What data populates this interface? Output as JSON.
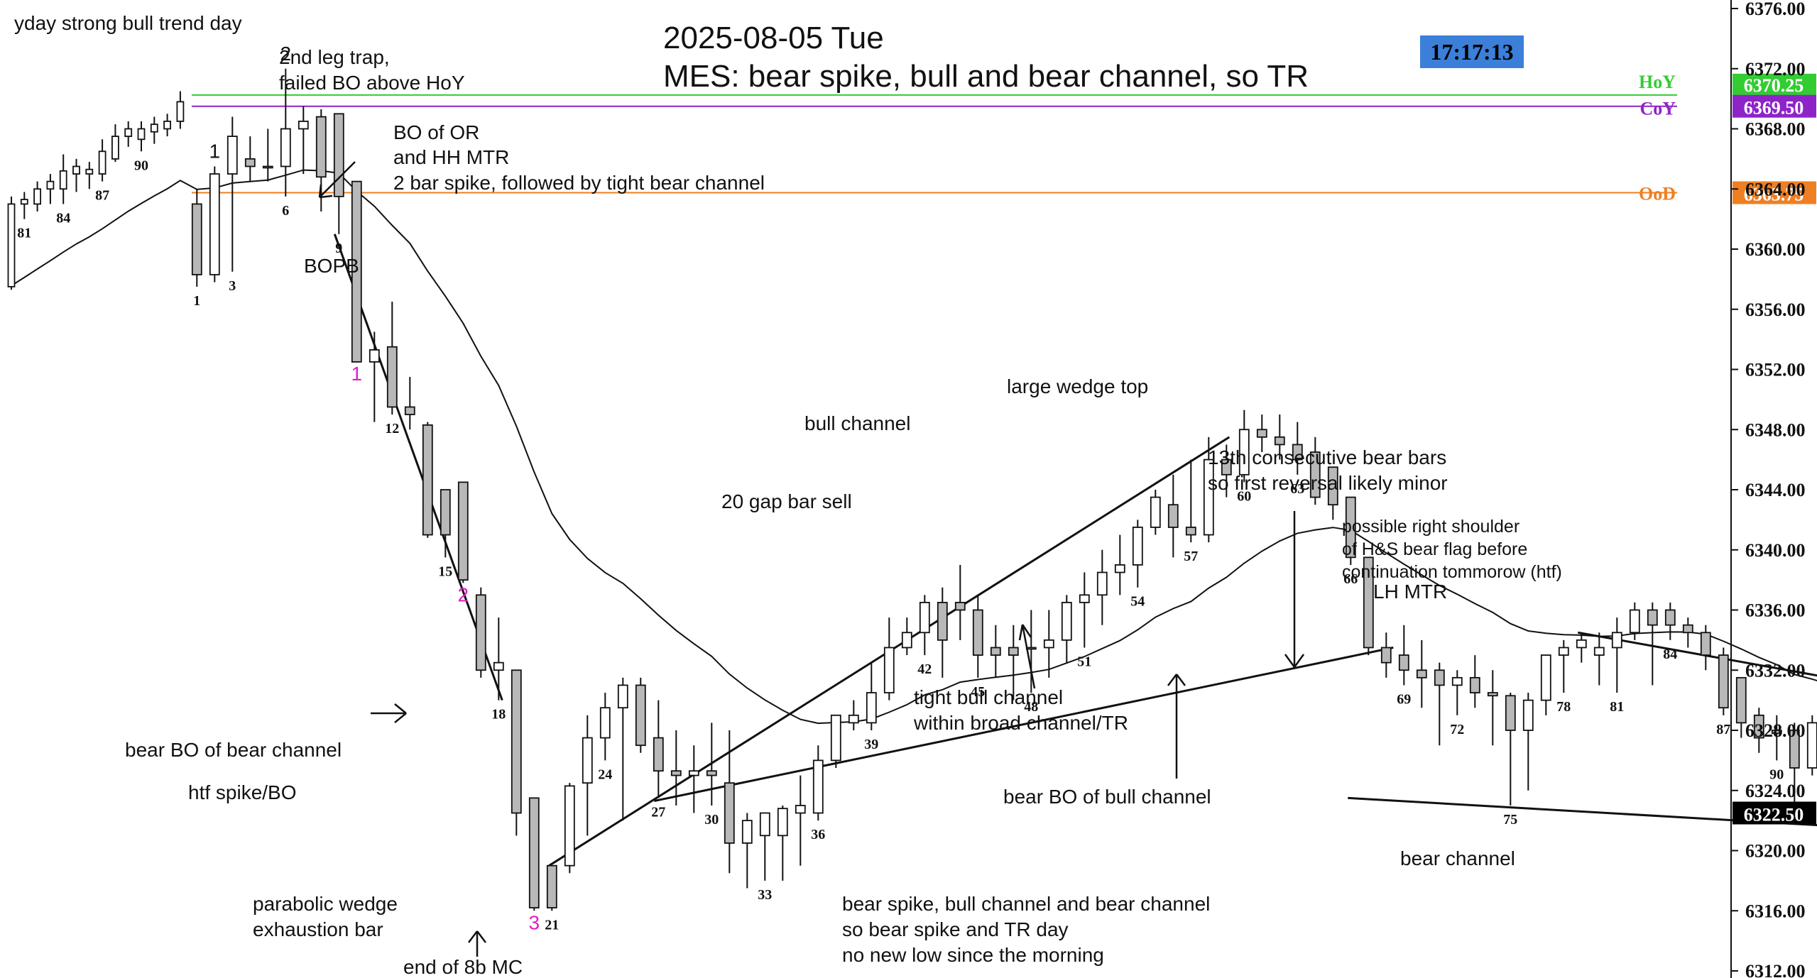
{
  "header": {
    "title_line1": "2025-08-05 Tue",
    "title_line2": "MES: bear spike, bull and bear channel, so TR",
    "clock": "17:17:13",
    "title_color": "#1a1aee",
    "clock_bg": "#3b7fd9"
  },
  "chart_data": {
    "type": "candlestick",
    "symbol": "MES",
    "date": "2025-08-05",
    "ylim": [
      6312,
      6376
    ],
    "y_ticks": [
      "6312.00",
      "6316.00",
      "6320.00",
      "6324.00",
      "6328.00",
      "6332.00",
      "6336.00",
      "6340.00",
      "6344.00",
      "6348.00",
      "6352.00",
      "6356.00",
      "6360.00",
      "6364.00",
      "6368.00",
      "6372.00",
      "6376.00"
    ],
    "prev_day_bars": [
      {
        "o": 6357.5,
        "h": 6363.5,
        "l": 6357.3,
        "c": 6363.0
      },
      {
        "o": 6363.0,
        "h": 6363.8,
        "l": 6362.0,
        "c": 6363.3
      },
      {
        "o": 6363.0,
        "h": 6364.5,
        "l": 6362.5,
        "c": 6364.0
      },
      {
        "o": 6364.0,
        "h": 6365.0,
        "l": 6363.0,
        "c": 6364.5
      },
      {
        "o": 6364.0,
        "h": 6366.3,
        "l": 6363.0,
        "c": 6365.2
      },
      {
        "o": 6365.0,
        "h": 6366.0,
        "l": 6363.8,
        "c": 6365.5
      },
      {
        "o": 6365.0,
        "h": 6365.8,
        "l": 6364.0,
        "c": 6365.3
      },
      {
        "o": 6365.0,
        "h": 6367.3,
        "l": 6364.5,
        "c": 6366.5
      },
      {
        "o": 6366.0,
        "h": 6368.3,
        "l": 6365.8,
        "c": 6367.5
      },
      {
        "o": 6367.5,
        "h": 6368.5,
        "l": 6366.8,
        "c": 6368.0
      },
      {
        "o": 6367.3,
        "h": 6368.5,
        "l": 6366.5,
        "c": 6368.0
      },
      {
        "o": 6367.8,
        "h": 6368.8,
        "l": 6367.0,
        "c": 6368.3
      },
      {
        "o": 6368.0,
        "h": 6369.0,
        "l": 6367.5,
        "c": 6368.5
      },
      {
        "o": 6368.5,
        "h": 6370.5,
        "l": 6368.0,
        "c": 6369.8
      }
    ],
    "bars": [
      {
        "o": 6363.0,
        "h": 6364.0,
        "l": 6357.5,
        "c": 6358.3
      },
      {
        "o": 6358.3,
        "h": 6365.5,
        "l": 6357.8,
        "c": 6365.0
      },
      {
        "o": 6365.0,
        "h": 6368.8,
        "l": 6358.5,
        "c": 6367.5
      },
      {
        "o": 6366.0,
        "h": 6367.5,
        "l": 6364.5,
        "c": 6365.5
      },
      {
        "o": 6365.5,
        "h": 6368.0,
        "l": 6364.5,
        "c": 6365.5
      },
      {
        "o": 6365.5,
        "h": 6372.0,
        "l": 6363.5,
        "c": 6368.0
      },
      {
        "o": 6368.0,
        "h": 6369.5,
        "l": 6365.0,
        "c": 6368.5
      },
      {
        "o": 6368.8,
        "h": 6369.3,
        "l": 6362.5,
        "c": 6364.8
      },
      {
        "o": 6369.0,
        "h": 6369.0,
        "l": 6361.0,
        "c": 6363.5
      },
      {
        "o": 6364.5,
        "h": 6364.5,
        "l": 6352.5,
        "c": 6352.5
      },
      {
        "o": 6352.5,
        "h": 6354.5,
        "l": 6348.5,
        "c": 6353.3
      },
      {
        "o": 6353.5,
        "h": 6356.5,
        "l": 6349.0,
        "c": 6349.5
      },
      {
        "o": 6349.5,
        "h": 6351.5,
        "l": 6348.0,
        "c": 6349.0
      },
      {
        "o": 6348.3,
        "h": 6348.5,
        "l": 6340.8,
        "c": 6341.0
      },
      {
        "o": 6344.0,
        "h": 6344.0,
        "l": 6339.5,
        "c": 6341.0
      },
      {
        "o": 6344.5,
        "h": 6344.5,
        "l": 6337.8,
        "c": 6338.0
      },
      {
        "o": 6337.0,
        "h": 6337.5,
        "l": 6331.5,
        "c": 6332.0
      },
      {
        "o": 6332.0,
        "h": 6335.5,
        "l": 6330.0,
        "c": 6332.5
      },
      {
        "o": 6332.0,
        "h": 6332.0,
        "l": 6321.0,
        "c": 6322.5
      },
      {
        "o": 6323.5,
        "h": 6323.5,
        "l": 6316.0,
        "c": 6316.2
      },
      {
        "o": 6319.0,
        "h": 6319.0,
        "l": 6316.0,
        "c": 6316.2
      },
      {
        "o": 6319.0,
        "h": 6324.5,
        "l": 6318.5,
        "c": 6324.3
      },
      {
        "o": 6324.5,
        "h": 6329.0,
        "l": 6321.0,
        "c": 6327.5
      },
      {
        "o": 6327.5,
        "h": 6330.5,
        "l": 6326.0,
        "c": 6329.5
      },
      {
        "o": 6329.5,
        "h": 6331.5,
        "l": 6322.0,
        "c": 6331.0
      },
      {
        "o": 6331.0,
        "h": 6331.5,
        "l": 6326.5,
        "c": 6327.0
      },
      {
        "o": 6327.5,
        "h": 6330.0,
        "l": 6323.5,
        "c": 6325.3
      },
      {
        "o": 6325.3,
        "h": 6328.0,
        "l": 6323.0,
        "c": 6325.0
      },
      {
        "o": 6325.0,
        "h": 6327.0,
        "l": 6322.5,
        "c": 6325.3
      },
      {
        "o": 6325.3,
        "h": 6328.5,
        "l": 6323.0,
        "c": 6325.0
      },
      {
        "o": 6324.5,
        "h": 6328.0,
        "l": 6318.5,
        "c": 6320.5
      },
      {
        "o": 6320.5,
        "h": 6322.5,
        "l": 6317.5,
        "c": 6322.0
      },
      {
        "o": 6321.0,
        "h": 6322.5,
        "l": 6318.0,
        "c": 6322.5
      },
      {
        "o": 6321.0,
        "h": 6323.0,
        "l": 6318.0,
        "c": 6322.8
      },
      {
        "o": 6322.5,
        "h": 6325.0,
        "l": 6319.0,
        "c": 6323.0
      },
      {
        "o": 6322.5,
        "h": 6327.0,
        "l": 6322.0,
        "c": 6326.0
      },
      {
        "o": 6326.0,
        "h": 6329.0,
        "l": 6325.5,
        "c": 6329.0
      },
      {
        "o": 6328.5,
        "h": 6330.0,
        "l": 6328.0,
        "c": 6329.0
      },
      {
        "o": 6328.5,
        "h": 6332.5,
        "l": 6328.0,
        "c": 6330.5
      },
      {
        "o": 6330.5,
        "h": 6335.5,
        "l": 6330.0,
        "c": 6333.5
      },
      {
        "o": 6333.5,
        "h": 6335.5,
        "l": 6333.0,
        "c": 6334.5
      },
      {
        "o": 6334.5,
        "h": 6337.0,
        "l": 6333.0,
        "c": 6336.5
      },
      {
        "o": 6336.5,
        "h": 6337.5,
        "l": 6331.5,
        "c": 6334.0
      },
      {
        "o": 6336.5,
        "h": 6339.0,
        "l": 6334.0,
        "c": 6336.0
      },
      {
        "o": 6336.0,
        "h": 6337.0,
        "l": 6331.5,
        "c": 6333.0
      },
      {
        "o": 6333.5,
        "h": 6335.0,
        "l": 6331.5,
        "c": 6333.0
      },
      {
        "o": 6333.5,
        "h": 6335.0,
        "l": 6330.0,
        "c": 6333.0
      },
      {
        "o": 6333.5,
        "h": 6336.0,
        "l": 6330.5,
        "c": 6333.5
      },
      {
        "o": 6333.5,
        "h": 6336.0,
        "l": 6331.5,
        "c": 6334.0
      },
      {
        "o": 6334.0,
        "h": 6337.0,
        "l": 6332.5,
        "c": 6336.5
      },
      {
        "o": 6336.5,
        "h": 6338.5,
        "l": 6333.5,
        "c": 6337.0
      },
      {
        "o": 6337.0,
        "h": 6340.0,
        "l": 6335.0,
        "c": 6338.5
      },
      {
        "o": 6338.5,
        "h": 6341.0,
        "l": 6337.0,
        "c": 6339.0
      },
      {
        "o": 6339.0,
        "h": 6342.0,
        "l": 6337.5,
        "c": 6341.5
      },
      {
        "o": 6341.5,
        "h": 6344.0,
        "l": 6341.0,
        "c": 6343.5
      },
      {
        "o": 6343.0,
        "h": 6345.0,
        "l": 6339.5,
        "c": 6341.5
      },
      {
        "o": 6341.5,
        "h": 6346.0,
        "l": 6340.5,
        "c": 6341.0
      },
      {
        "o": 6341.0,
        "h": 6347.5,
        "l": 6340.5,
        "c": 6346.0
      },
      {
        "o": 6346.0,
        "h": 6347.0,
        "l": 6343.5,
        "c": 6345.0
      },
      {
        "o": 6345.0,
        "h": 6349.3,
        "l": 6344.5,
        "c": 6348.0
      },
      {
        "o": 6348.0,
        "h": 6349.0,
        "l": 6346.5,
        "c": 6347.5
      },
      {
        "o": 6347.5,
        "h": 6349.0,
        "l": 6346.0,
        "c": 6347.0
      },
      {
        "o": 6347.0,
        "h": 6348.5,
        "l": 6345.0,
        "c": 6346.0
      },
      {
        "o": 6346.5,
        "h": 6347.5,
        "l": 6343.0,
        "c": 6343.5
      },
      {
        "o": 6345.5,
        "h": 6345.5,
        "l": 6342.0,
        "c": 6343.0
      },
      {
        "o": 6343.5,
        "h": 6343.5,
        "l": 6339.0,
        "c": 6339.5
      },
      {
        "o": 6339.5,
        "h": 6339.5,
        "l": 6333.0,
        "c": 6333.5
      },
      {
        "o": 6333.5,
        "h": 6334.5,
        "l": 6331.5,
        "c": 6332.5
      },
      {
        "o": 6333.0,
        "h": 6335.0,
        "l": 6331.0,
        "c": 6332.0
      },
      {
        "o": 6332.0,
        "h": 6334.0,
        "l": 6329.5,
        "c": 6331.5
      },
      {
        "o": 6332.0,
        "h": 6332.5,
        "l": 6327.0,
        "c": 6331.0
      },
      {
        "o": 6331.0,
        "h": 6332.0,
        "l": 6329.0,
        "c": 6331.5
      },
      {
        "o": 6331.5,
        "h": 6333.0,
        "l": 6329.5,
        "c": 6330.5
      },
      {
        "o": 6330.5,
        "h": 6332.0,
        "l": 6327.0,
        "c": 6330.3
      },
      {
        "o": 6330.3,
        "h": 6330.5,
        "l": 6323.0,
        "c": 6328.0
      },
      {
        "o": 6328.0,
        "h": 6330.5,
        "l": 6324.0,
        "c": 6330.0
      },
      {
        "o": 6330.0,
        "h": 6333.0,
        "l": 6329.0,
        "c": 6333.0
      },
      {
        "o": 6333.0,
        "h": 6334.0,
        "l": 6330.5,
        "c": 6333.5
      },
      {
        "o": 6333.5,
        "h": 6334.5,
        "l": 6332.5,
        "c": 6334.0
      },
      {
        "o": 6333.0,
        "h": 6334.5,
        "l": 6331.0,
        "c": 6333.5
      },
      {
        "o": 6333.5,
        "h": 6335.5,
        "l": 6330.5,
        "c": 6334.5
      },
      {
        "o": 6334.5,
        "h": 6336.5,
        "l": 6334.0,
        "c": 6336.0
      },
      {
        "o": 6336.0,
        "h": 6336.5,
        "l": 6331.0,
        "c": 6335.0
      },
      {
        "o": 6336.0,
        "h": 6336.5,
        "l": 6334.0,
        "c": 6335.0
      },
      {
        "o": 6335.0,
        "h": 6335.5,
        "l": 6333.5,
        "c": 6334.5
      },
      {
        "o": 6334.5,
        "h": 6335.0,
        "l": 6332.0,
        "c": 6333.0
      },
      {
        "o": 6333.0,
        "h": 6333.5,
        "l": 6329.0,
        "c": 6329.5
      },
      {
        "o": 6331.5,
        "h": 6331.5,
        "l": 6327.5,
        "c": 6328.5
      },
      {
        "o": 6329.0,
        "h": 6329.5,
        "l": 6326.5,
        "c": 6327.5
      },
      {
        "o": 6328.0,
        "h": 6329.0,
        "l": 6326.0,
        "c": 6327.8
      },
      {
        "o": 6328.0,
        "h": 6328.5,
        "l": 6323.0,
        "c": 6325.5
      },
      {
        "o": 6325.5,
        "h": 6329.0,
        "l": 6325.0,
        "c": 6328.5
      },
      {
        "o": 6328.5,
        "h": 6329.0,
        "l": 6326.0,
        "c": 6327.5
      },
      {
        "o": 6328.0,
        "h": 6329.0,
        "l": 6326.5,
        "c": 6328.5
      },
      {
        "o": 6328.5,
        "h": 6329.5,
        "l": 6327.5,
        "c": 6328.5
      },
      {
        "o": 6328.5,
        "h": 6332.5,
        "l": 6327.5,
        "c": 6331.0
      },
      {
        "o": 6331.5,
        "h": 6331.5,
        "l": 6322.5,
        "c": 6323.0
      },
      {
        "o": 6323.0,
        "h": 6325.5,
        "l": 6321.0,
        "c": 6324.0
      },
      {
        "o": 6324.5,
        "h": 6324.5,
        "l": 6322.0,
        "c": 6322.5
      },
      {
        "o": 6322.5,
        "h": 6324.0,
        "l": 6322.0,
        "c": 6323.5
      },
      {
        "o": 6323.5,
        "h": 6325.0,
        "l": 6322.0,
        "c": 6324.0
      },
      {
        "o": 6324.0,
        "h": 6325.5,
        "l": 6323.0,
        "c": 6325.0
      },
      {
        "o": 6325.0,
        "h": 6326.5,
        "l": 6324.0,
        "c": 6326.0
      },
      {
        "o": 6326.5,
        "h": 6326.5,
        "l": 6323.0,
        "c": 6324.5
      },
      {
        "o": 6324.5,
        "h": 6326.5,
        "l": 6323.5,
        "c": 6326.0
      }
    ],
    "bar_labels": [
      {
        "label": "81",
        "prev": 1
      },
      {
        "label": "84",
        "prev": 4
      },
      {
        "label": "87",
        "prev": 7
      },
      {
        "label": "90",
        "prev": 10
      },
      {
        "label": "1",
        "i": 0
      },
      {
        "label": "3",
        "i": 2
      },
      {
        "label": "6",
        "i": 5
      },
      {
        "label": "9",
        "i": 8
      },
      {
        "label": "12",
        "i": 11
      },
      {
        "label": "15",
        "i": 14
      },
      {
        "label": "18",
        "i": 17
      },
      {
        "label": "21",
        "i": 20
      },
      {
        "label": "24",
        "i": 23
      },
      {
        "label": "27",
        "i": 26
      },
      {
        "label": "30",
        "i": 29
      },
      {
        "label": "33",
        "i": 32
      },
      {
        "label": "36",
        "i": 35
      },
      {
        "label": "39",
        "i": 38
      },
      {
        "label": "42",
        "i": 41
      },
      {
        "label": "45",
        "i": 44
      },
      {
        "label": "48",
        "i": 47
      },
      {
        "label": "51",
        "i": 50
      },
      {
        "label": "54",
        "i": 53
      },
      {
        "label": "57",
        "i": 56
      },
      {
        "label": "60",
        "i": 59
      },
      {
        "label": "63",
        "i": 62
      },
      {
        "label": "66",
        "i": 65
      },
      {
        "label": "69",
        "i": 68
      },
      {
        "label": "72",
        "i": 71
      },
      {
        "label": "75",
        "i": 74
      },
      {
        "label": "78",
        "i": 77
      },
      {
        "label": "81",
        "i": 80
      },
      {
        "label": "84",
        "i": 83
      },
      {
        "label": "87",
        "i": 86
      },
      {
        "label": "90",
        "i": 89
      }
    ],
    "levels": [
      {
        "name": "HoY",
        "price": 6370.25,
        "price_text": "6370.25",
        "color": "#33cc33"
      },
      {
        "name": "CoY",
        "price": 6369.5,
        "price_text": "6369.50",
        "color": "#8e24c8"
      },
      {
        "name": "OoD",
        "price": 6363.75,
        "price_text": "6363.75",
        "color": "#ef7f22"
      }
    ],
    "last_price": {
      "price": 6322.5,
      "text": "6322.50"
    },
    "legs": [
      {
        "label": "1",
        "i": 9,
        "color": "#e020c8"
      },
      {
        "label": "2",
        "i": 15,
        "color": "#e020c8"
      },
      {
        "label": "3",
        "i": 19,
        "color": "#e020c8"
      },
      {
        "label": "1",
        "i": 1,
        "color": "#111111"
      },
      {
        "label": "2",
        "i": 5,
        "color": "#111111"
      }
    ],
    "annotations": [
      "yday strong bull trend day",
      "2nd leg trap,",
      "failed BO above HoY",
      "BO of OR",
      "and HH MTR",
      "2 bar spike, followed by tight bear channel",
      "BOPB",
      "bear BO of bear channel",
      "htf spike/BO",
      "parabolic wedge",
      "exhaustion bar",
      "end of 8b MC",
      "bull channel",
      "large wedge top",
      "20 gap bar sell",
      "tight bull channel",
      "within broad channel/TR",
      "bear BO of bull channel",
      "13th consecutive bear bars",
      "so first reversal likely minor",
      "possible right shoulder",
      "of H&S bear flag before",
      "continuation tommorow (htf)",
      "LH MTR",
      "bear channel",
      "bear spike, bull channel and bear channel",
      "so bear spike and TR day",
      "no new low since the morning"
    ]
  }
}
